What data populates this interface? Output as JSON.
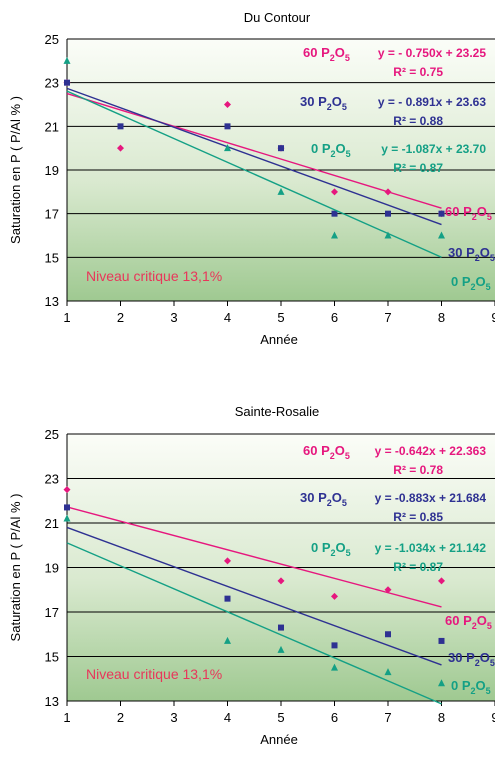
{
  "chart_data": [
    {
      "type": "scatter",
      "title": "Du Contour",
      "xlabel": "Année",
      "ylabel": "Saturation en P ( P/Al % )",
      "xlim": [
        1,
        9
      ],
      "ylim": [
        13,
        25
      ],
      "xticks": [
        "1",
        "2",
        "3",
        "4",
        "5",
        "6",
        "7",
        "8",
        "9"
      ],
      "yticks": [
        "13",
        "15",
        "17",
        "19",
        "21",
        "23",
        "25"
      ],
      "background": "green gradient (light at top, darker green at bottom)",
      "grid": "horizontal",
      "annotation": "Niveau critique 13,1%",
      "series": [
        {
          "name": "60 P2O5",
          "label_parts": [
            "60 P",
            "2",
            "O",
            "5"
          ],
          "color": "#e6177e",
          "marker": "diamond",
          "points": [
            [
              1,
              23
            ],
            [
              2,
              20
            ],
            [
              4,
              22
            ],
            [
              5,
              20
            ],
            [
              6,
              18
            ],
            [
              7,
              18
            ],
            [
              8,
              17
            ]
          ],
          "trendline": {
            "slope": -0.75,
            "intercept": 23.25
          },
          "equation": "y = - 0.750x + 23.25",
          "r2": "0.75",
          "r2_text": "R² = 0.75"
        },
        {
          "name": "30 P2O5",
          "label_parts": [
            "30 P",
            "2",
            "O",
            "5"
          ],
          "color": "#2e3192",
          "marker": "square",
          "points": [
            [
              1,
              23
            ],
            [
              2,
              21
            ],
            [
              4,
              21
            ],
            [
              5,
              20
            ],
            [
              6,
              17
            ],
            [
              7,
              17
            ],
            [
              8,
              17
            ]
          ],
          "trendline": {
            "slope": -0.891,
            "intercept": 23.63
          },
          "equation": "y = - 0.891x + 23.63",
          "r2": "0.88",
          "r2_text": "R² = 0.88"
        },
        {
          "name": "0 P2O5",
          "label_parts": [
            "0 P",
            "2",
            "O",
            "5"
          ],
          "color": "#14a085",
          "marker": "triangle",
          "points": [
            [
              1,
              24
            ],
            [
              4,
              20
            ],
            [
              5,
              18
            ],
            [
              6,
              16
            ],
            [
              7,
              16
            ],
            [
              8,
              16
            ]
          ],
          "trendline": {
            "slope": -1.087,
            "intercept": 23.7
          },
          "equation": "y = -1.087x + 23.70",
          "r2": "0.87",
          "r2_text": "R² = 0.87"
        }
      ]
    },
    {
      "type": "scatter",
      "title": "Sainte-Rosalie",
      "xlabel": "Année",
      "ylabel": "Saturation en P ( P/Al % )",
      "xlim": [
        1,
        9
      ],
      "ylim": [
        13,
        25
      ],
      "xticks": [
        "1",
        "2",
        "3",
        "4",
        "5",
        "6",
        "7",
        "8",
        "9"
      ],
      "yticks": [
        "13",
        "15",
        "17",
        "19",
        "21",
        "23",
        "25"
      ],
      "background": "green gradient (light at top, darker green at bottom)",
      "grid": "horizontal",
      "annotation": "Niveau critique 13,1%",
      "series": [
        {
          "name": "60 P2O5",
          "label_parts": [
            "60 P",
            "2",
            "O",
            "5"
          ],
          "color": "#e6177e",
          "marker": "diamond",
          "points": [
            [
              1,
              22.5
            ],
            [
              4,
              19.3
            ],
            [
              5,
              18.4
            ],
            [
              6,
              17.7
            ],
            [
              7,
              18.0
            ],
            [
              8,
              18.4
            ]
          ],
          "trendline": {
            "slope": -0.642,
            "intercept": 22.363
          },
          "equation": "y = -0.642x + 22.363",
          "r2": "0.78",
          "r2_text": "R² = 0.78"
        },
        {
          "name": "30 P2O5",
          "label_parts": [
            "30 P",
            "2",
            "O",
            "5"
          ],
          "color": "#2e3192",
          "marker": "square",
          "points": [
            [
              1,
              21.7
            ],
            [
              4,
              17.6
            ],
            [
              5,
              16.3
            ],
            [
              6,
              15.5
            ],
            [
              7,
              16.0
            ],
            [
              8,
              15.7
            ]
          ],
          "trendline": {
            "slope": -0.883,
            "intercept": 21.684
          },
          "equation": "y = -0.883x + 21.684",
          "r2": "0.85",
          "r2_text": "R² = 0.85"
        },
        {
          "name": "0 P2O5",
          "label_parts": [
            "0 P",
            "2",
            "O",
            "5"
          ],
          "color": "#14a085",
          "marker": "triangle",
          "points": [
            [
              1,
              21.2
            ],
            [
              4,
              15.7
            ],
            [
              5,
              15.3
            ],
            [
              6,
              14.5
            ],
            [
              7,
              14.3
            ],
            [
              8,
              13.8
            ]
          ],
          "trendline": {
            "slope": -1.034,
            "intercept": 21.142
          },
          "equation": "y = -1.034x + 21.142",
          "r2": "0.87",
          "r2_text": "R² = 0.87"
        }
      ]
    }
  ]
}
